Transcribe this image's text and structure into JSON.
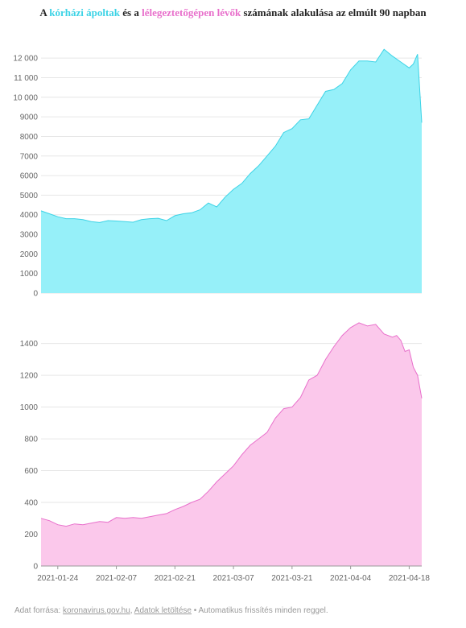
{
  "title": {
    "prefix": "A ",
    "series1": "kórházi ápoltak",
    "middle": " és a ",
    "series2": "lélegeztetőgépen lévők",
    "suffix": " számának alakulása az elmúlt 90 napban"
  },
  "footer": {
    "prefix": "Adat forrása: ",
    "source_link": "koronavirus.gov.hu",
    "separator": ", ",
    "download_link": "Adatok letöltése",
    "suffix": " • Automatikus frissítés minden reggel."
  },
  "colors": {
    "hospitalized": "#3cd3e6",
    "hospitalized_fill": "#96f0f9",
    "ventilated": "#e86fcb",
    "ventilated_fill": "#fbc8eb"
  },
  "chart_data": [
    {
      "type": "area",
      "title": "",
      "xlabel": "",
      "ylabel": "",
      "x_range": [
        "2021-01-20",
        "2021-04-21"
      ],
      "ylim": [
        0,
        12500
      ],
      "yticks": [
        0,
        1000,
        2000,
        3000,
        4000,
        5000,
        6000,
        7000,
        8000,
        9000,
        10000,
        11000,
        12000
      ],
      "ytick_labels": [
        "0",
        "1000",
        "2000",
        "3000",
        "4000",
        "5000",
        "6000",
        "7000",
        "8000",
        "9000",
        "10 000",
        "11 000",
        "12 000"
      ],
      "grid": true,
      "series": [
        {
          "color": "#3cd3e6",
          "points": [
            [
              "2021-01-20",
              4200
            ],
            [
              "2021-01-22",
              4050
            ],
            [
              "2021-01-24",
              3900
            ],
            [
              "2021-01-26",
              3800
            ],
            [
              "2021-01-28",
              3800
            ],
            [
              "2021-01-30",
              3750
            ],
            [
              "2021-02-01",
              3650
            ],
            [
              "2021-02-03",
              3600
            ],
            [
              "2021-02-05",
              3700
            ],
            [
              "2021-02-07",
              3680
            ],
            [
              "2021-02-09",
              3650
            ],
            [
              "2021-02-11",
              3620
            ],
            [
              "2021-02-13",
              3750
            ],
            [
              "2021-02-15",
              3800
            ],
            [
              "2021-02-17",
              3820
            ],
            [
              "2021-02-19",
              3700
            ],
            [
              "2021-02-21",
              3950
            ],
            [
              "2021-02-23",
              4050
            ],
            [
              "2021-02-25",
              4100
            ],
            [
              "2021-02-27",
              4250
            ],
            [
              "2021-03-01",
              4600
            ],
            [
              "2021-03-03",
              4400
            ],
            [
              "2021-03-05",
              4900
            ],
            [
              "2021-03-07",
              5300
            ],
            [
              "2021-03-09",
              5600
            ],
            [
              "2021-03-11",
              6100
            ],
            [
              "2021-03-13",
              6500
            ],
            [
              "2021-03-15",
              7000
            ],
            [
              "2021-03-17",
              7500
            ],
            [
              "2021-03-19",
              8200
            ],
            [
              "2021-03-21",
              8400
            ],
            [
              "2021-03-23",
              8850
            ],
            [
              "2021-03-25",
              8900
            ],
            [
              "2021-03-27",
              9600
            ],
            [
              "2021-03-29",
              10300
            ],
            [
              "2021-03-31",
              10400
            ],
            [
              "2021-04-02",
              10700
            ],
            [
              "2021-04-04",
              11400
            ],
            [
              "2021-04-06",
              11850
            ],
            [
              "2021-04-08",
              11850
            ],
            [
              "2021-04-10",
              11800
            ],
            [
              "2021-04-12",
              12450
            ],
            [
              "2021-04-14",
              12100
            ],
            [
              "2021-04-16",
              11800
            ],
            [
              "2021-04-18",
              11500
            ],
            [
              "2021-04-19",
              11700
            ],
            [
              "2021-04-20",
              12200
            ],
            [
              "2021-04-21",
              8700
            ]
          ]
        }
      ]
    },
    {
      "type": "area",
      "title": "",
      "xlabel": "",
      "ylabel": "",
      "x_range": [
        "2021-01-20",
        "2021-04-21"
      ],
      "ylim": [
        0,
        1550
      ],
      "yticks": [
        0,
        200,
        400,
        600,
        800,
        1000,
        1200,
        1400
      ],
      "ytick_labels": [
        "0",
        "200",
        "400",
        "600",
        "800",
        "1000",
        "1200",
        "1400"
      ],
      "xticks": [
        "2021-01-24",
        "2021-02-07",
        "2021-02-21",
        "2021-03-07",
        "2021-03-21",
        "2021-04-04",
        "2021-04-18"
      ],
      "grid": true,
      "series": [
        {
          "color": "#e86fcb",
          "points": [
            [
              "2021-01-20",
              300
            ],
            [
              "2021-01-22",
              285
            ],
            [
              "2021-01-24",
              260
            ],
            [
              "2021-01-26",
              250
            ],
            [
              "2021-01-28",
              265
            ],
            [
              "2021-01-30",
              260
            ],
            [
              "2021-02-01",
              270
            ],
            [
              "2021-02-03",
              280
            ],
            [
              "2021-02-05",
              275
            ],
            [
              "2021-02-07",
              305
            ],
            [
              "2021-02-09",
              300
            ],
            [
              "2021-02-11",
              305
            ],
            [
              "2021-02-13",
              300
            ],
            [
              "2021-02-15",
              310
            ],
            [
              "2021-02-17",
              320
            ],
            [
              "2021-02-19",
              330
            ],
            [
              "2021-02-21",
              355
            ],
            [
              "2021-02-23",
              375
            ],
            [
              "2021-02-25",
              400
            ],
            [
              "2021-02-27",
              420
            ],
            [
              "2021-03-01",
              470
            ],
            [
              "2021-03-03",
              530
            ],
            [
              "2021-03-05",
              580
            ],
            [
              "2021-03-07",
              630
            ],
            [
              "2021-03-09",
              700
            ],
            [
              "2021-03-11",
              760
            ],
            [
              "2021-03-13",
              800
            ],
            [
              "2021-03-15",
              840
            ],
            [
              "2021-03-17",
              930
            ],
            [
              "2021-03-19",
              990
            ],
            [
              "2021-03-21",
              1000
            ],
            [
              "2021-03-23",
              1060
            ],
            [
              "2021-03-25",
              1170
            ],
            [
              "2021-03-27",
              1200
            ],
            [
              "2021-03-29",
              1300
            ],
            [
              "2021-03-31",
              1380
            ],
            [
              "2021-04-02",
              1450
            ],
            [
              "2021-04-04",
              1500
            ],
            [
              "2021-04-06",
              1530
            ],
            [
              "2021-04-08",
              1510
            ],
            [
              "2021-04-10",
              1520
            ],
            [
              "2021-04-12",
              1460
            ],
            [
              "2021-04-14",
              1440
            ],
            [
              "2021-04-15",
              1450
            ],
            [
              "2021-04-16",
              1420
            ],
            [
              "2021-04-17",
              1350
            ],
            [
              "2021-04-18",
              1360
            ],
            [
              "2021-04-19",
              1250
            ],
            [
              "2021-04-20",
              1200
            ],
            [
              "2021-04-21",
              1055
            ]
          ]
        }
      ]
    }
  ]
}
